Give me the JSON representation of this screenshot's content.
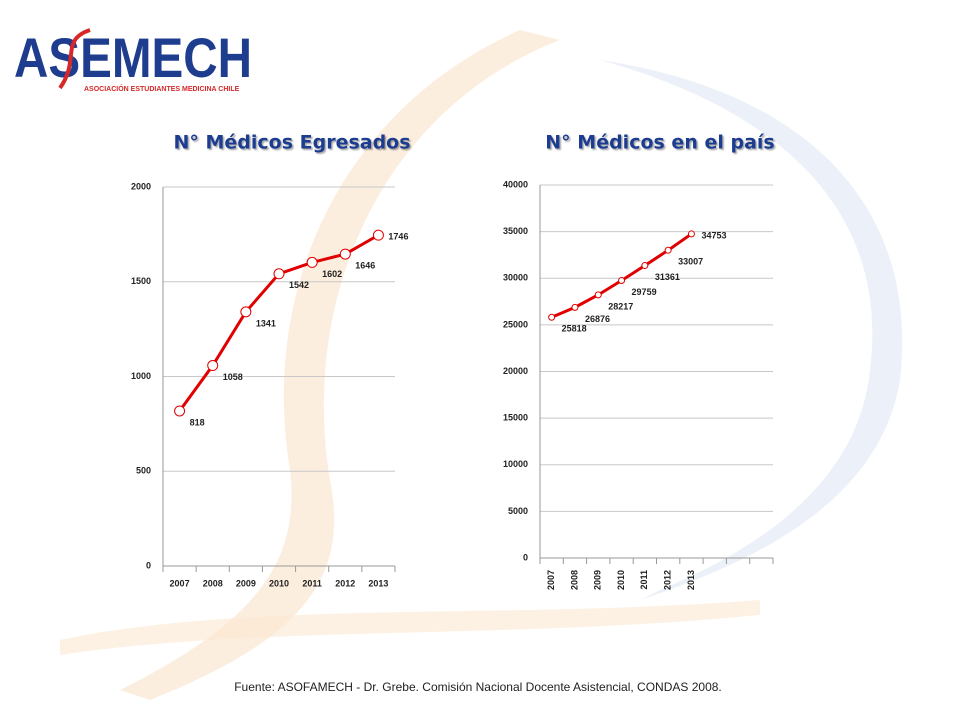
{
  "logo": {
    "name": "ASEMECH",
    "subtitle": "ASOCIACIÓN ESTUDIANTES MEDICINA CHILE"
  },
  "chart_data": [
    {
      "type": "line",
      "title": "N° Médicos Egresados",
      "categories": [
        "2007",
        "2008",
        "2009",
        "2010",
        "2011",
        "2012",
        "2013"
      ],
      "values": [
        818,
        1058,
        1341,
        1542,
        1602,
        1646,
        1746
      ],
      "color": "#e00000",
      "ylim": [
        0,
        2000
      ],
      "yticks": [
        0,
        500,
        1000,
        1500,
        2000
      ],
      "grid": true
    },
    {
      "type": "line",
      "title": "N° Médicos en el país",
      "categories": [
        "2007",
        "2008",
        "2009",
        "2010",
        "2011",
        "2012",
        "2013",
        null,
        null,
        null
      ],
      "values": [
        25818,
        26876,
        28217,
        29759,
        31361,
        33007,
        34753,
        null,
        null,
        null
      ],
      "color": "#e00000",
      "ylim": [
        0,
        40000
      ],
      "yticks": [
        0,
        5000,
        10000,
        15000,
        20000,
        25000,
        30000,
        35000,
        40000
      ],
      "grid": true
    }
  ],
  "source": "Fuente: ASOFAMECH - Dr. Grebe. Comisión Nacional Docente Asistencial, CONDAS 2008."
}
